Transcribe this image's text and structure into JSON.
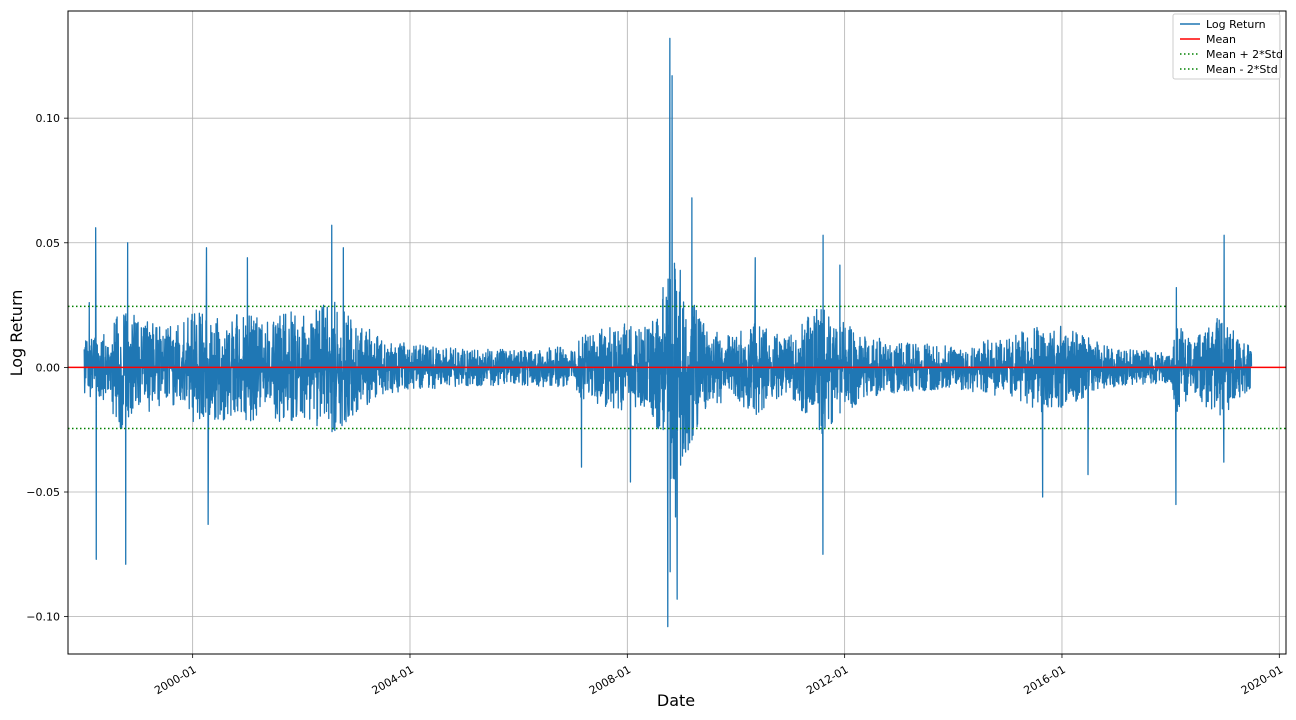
{
  "chart_data": {
    "type": "line",
    "title": "",
    "xlabel": "Date",
    "ylabel": "Log Return",
    "x_range": [
      "1997-09-15",
      "2020-02-15"
    ],
    "ylim": [
      -0.115,
      0.143
    ],
    "grid": true,
    "legend_position": "top-right",
    "x_ticks": [
      "2000-01",
      "2004-01",
      "2008-01",
      "2012-01",
      "2016-01",
      "2020-01"
    ],
    "y_ticks": [
      -0.1,
      -0.05,
      0.0,
      0.05,
      0.1
    ],
    "y_tick_labels": [
      "−0.10",
      "−0.05",
      "0.00",
      "0.05",
      "0.10"
    ],
    "data_range": [
      "1998-01-02",
      "2019-06-28"
    ],
    "reference_lines": {
      "mean": 0.0,
      "mean_plus_2std": 0.0245,
      "mean_minus_2std": -0.0245
    },
    "series": [
      {
        "name": "Log Return",
        "color": "#1f77b4",
        "style": "solid"
      },
      {
        "name": "Mean",
        "color": "#ff0000",
        "style": "solid"
      },
      {
        "name": "Mean + 2*Std",
        "color": "#008000",
        "style": "dotted"
      },
      {
        "name": "Mean - 2*Std",
        "color": "#008000",
        "style": "dotted"
      }
    ],
    "volatility_envelope": {
      "dates": [
        "1998-01",
        "1998-06",
        "1998-09",
        "1999-01",
        "1999-06",
        "2000-01",
        "2000-06",
        "2001-01",
        "2001-06",
        "2001-09",
        "2002-01",
        "2002-07",
        "2002-10",
        "2003-03",
        "2003-07",
        "2004-01",
        "2005-01",
        "2006-01",
        "2007-01",
        "2007-03",
        "2007-08",
        "2008-01",
        "2008-06",
        "2008-09",
        "2008-11",
        "2009-03",
        "2009-06",
        "2010-01",
        "2010-05",
        "2010-09",
        "2011-01",
        "2011-08",
        "2011-11",
        "2012-06",
        "2013-01",
        "2014-01",
        "2014-10",
        "2015-01",
        "2015-08",
        "2016-01",
        "2016-06",
        "2017-01",
        "2018-01",
        "2018-02",
        "2018-06",
        "2018-10",
        "2018-12",
        "2019-06"
      ],
      "upper": [
        0.011,
        0.013,
        0.024,
        0.019,
        0.016,
        0.021,
        0.02,
        0.021,
        0.018,
        0.023,
        0.019,
        0.026,
        0.024,
        0.016,
        0.011,
        0.009,
        0.007,
        0.007,
        0.008,
        0.012,
        0.015,
        0.017,
        0.015,
        0.032,
        0.045,
        0.03,
        0.017,
        0.012,
        0.019,
        0.013,
        0.012,
        0.026,
        0.02,
        0.012,
        0.01,
        0.008,
        0.011,
        0.011,
        0.017,
        0.016,
        0.012,
        0.007,
        0.006,
        0.018,
        0.01,
        0.017,
        0.02,
        0.009
      ],
      "lower": [
        -0.011,
        -0.013,
        -0.024,
        -0.019,
        -0.016,
        -0.021,
        -0.02,
        -0.021,
        -0.018,
        -0.023,
        -0.019,
        -0.026,
        -0.024,
        -0.016,
        -0.011,
        -0.009,
        -0.007,
        -0.007,
        -0.008,
        -0.012,
        -0.015,
        -0.017,
        -0.015,
        -0.032,
        -0.045,
        -0.03,
        -0.017,
        -0.012,
        -0.019,
        -0.013,
        -0.012,
        -0.026,
        -0.02,
        -0.012,
        -0.01,
        -0.008,
        -0.011,
        -0.011,
        -0.017,
        -0.016,
        -0.012,
        -0.007,
        -0.006,
        -0.018,
        -0.01,
        -0.017,
        -0.02,
        -0.009
      ]
    },
    "notable_values": [
      {
        "date": "1998-02-05",
        "value": 0.026
      },
      {
        "date": "1998-03-20",
        "value": 0.056
      },
      {
        "date": "1998-03-24",
        "value": -0.077
      },
      {
        "date": "1998-10-08",
        "value": -0.079
      },
      {
        "date": "1998-10-21",
        "value": 0.05
      },
      {
        "date": "2000-04-03",
        "value": 0.048
      },
      {
        "date": "2000-04-14",
        "value": -0.063
      },
      {
        "date": "2001-01-03",
        "value": 0.044
      },
      {
        "date": "2002-07-24",
        "value": 0.057
      },
      {
        "date": "2002-10-10",
        "value": 0.048
      },
      {
        "date": "2007-02-27",
        "value": -0.04
      },
      {
        "date": "2008-01-22",
        "value": -0.046
      },
      {
        "date": "2008-09-29",
        "value": -0.104
      },
      {
        "date": "2008-10-13",
        "value": 0.132
      },
      {
        "date": "2008-10-15",
        "value": -0.082
      },
      {
        "date": "2008-10-28",
        "value": 0.117
      },
      {
        "date": "2008-11-20",
        "value": -0.06
      },
      {
        "date": "2008-12-01",
        "value": -0.093
      },
      {
        "date": "2009-03-10",
        "value": 0.068
      },
      {
        "date": "2010-05-10",
        "value": 0.044
      },
      {
        "date": "2011-08-08",
        "value": -0.075
      },
      {
        "date": "2011-08-09",
        "value": 0.053
      },
      {
        "date": "2011-11-30",
        "value": 0.041
      },
      {
        "date": "2015-08-24",
        "value": -0.052
      },
      {
        "date": "2016-06-24",
        "value": -0.043
      },
      {
        "date": "2018-02-05",
        "value": -0.055
      },
      {
        "date": "2018-02-08",
        "value": 0.032
      },
      {
        "date": "2018-12-24",
        "value": -0.038
      },
      {
        "date": "2018-12-26",
        "value": 0.053
      }
    ]
  }
}
